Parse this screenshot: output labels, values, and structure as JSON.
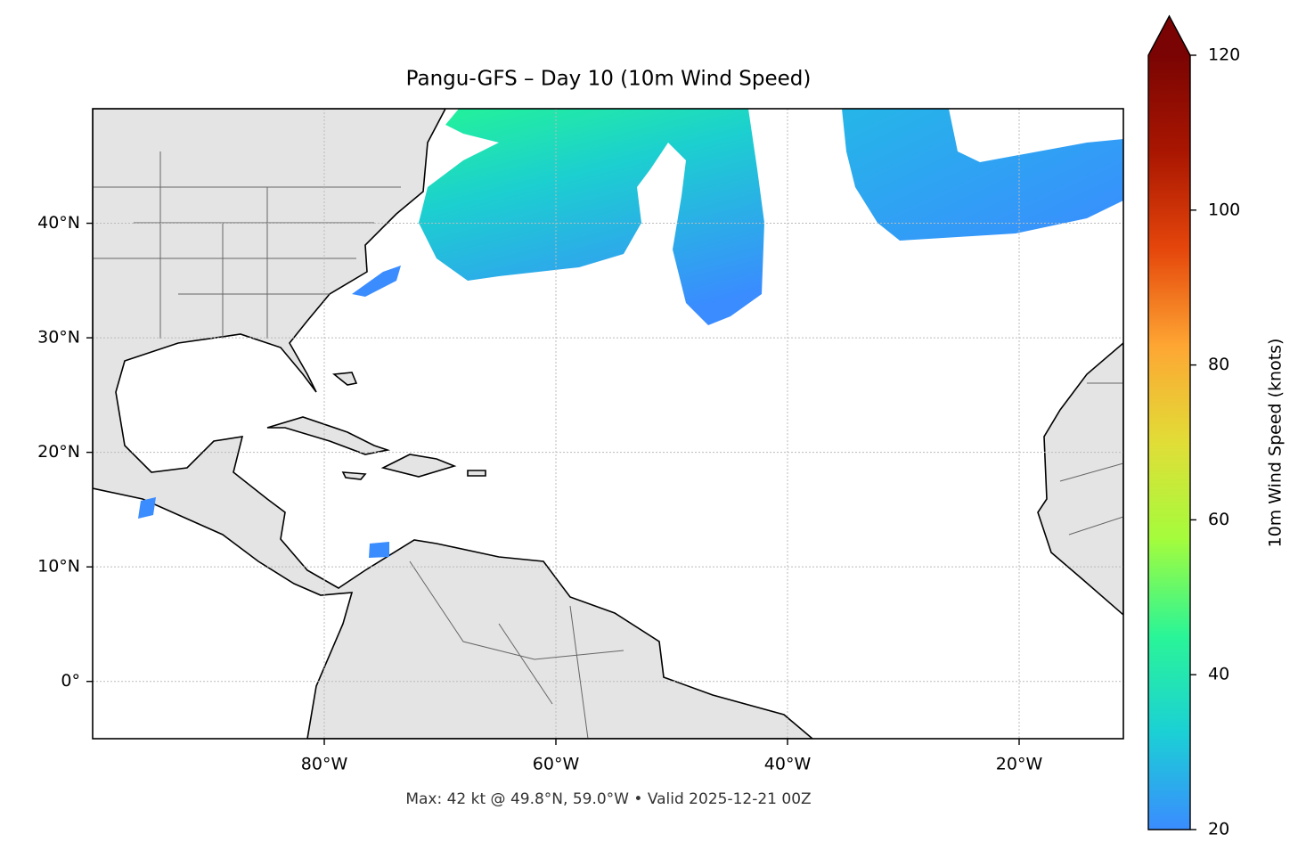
{
  "chart_data": {
    "type": "map",
    "title": "Pangu-GFS – Day 10 (10m Wind Speed)",
    "caption": "Max: 42 kt @ 49.8°N, 59.0°W • Valid 2025-12-21 00Z",
    "xlim": [
      -100,
      -11
    ],
    "ylim": [
      -5,
      50
    ],
    "xticks": [
      {
        "value": -80,
        "label": "80°W"
      },
      {
        "value": -60,
        "label": "60°W"
      },
      {
        "value": -40,
        "label": "40°W"
      },
      {
        "value": -20,
        "label": "20°W"
      }
    ],
    "yticks": [
      {
        "value": 0,
        "label": "0°"
      },
      {
        "value": 10,
        "label": "10°N"
      },
      {
        "value": 20,
        "label": "20°N"
      },
      {
        "value": 30,
        "label": "30°N"
      },
      {
        "value": 40,
        "label": "40°N"
      }
    ],
    "grid": true,
    "colorbar": {
      "label": "10m Wind Speed (knots)",
      "lim": [
        20,
        120
      ],
      "ticks": [
        20,
        40,
        60,
        80,
        100,
        120
      ],
      "colormap": [
        "#3a8cff",
        "#1bd0d5",
        "#2af597",
        "#a4fc3c",
        "#e1dd37",
        "#fea633",
        "#e5460b",
        "#a91601",
        "#7a0403"
      ]
    }
  }
}
